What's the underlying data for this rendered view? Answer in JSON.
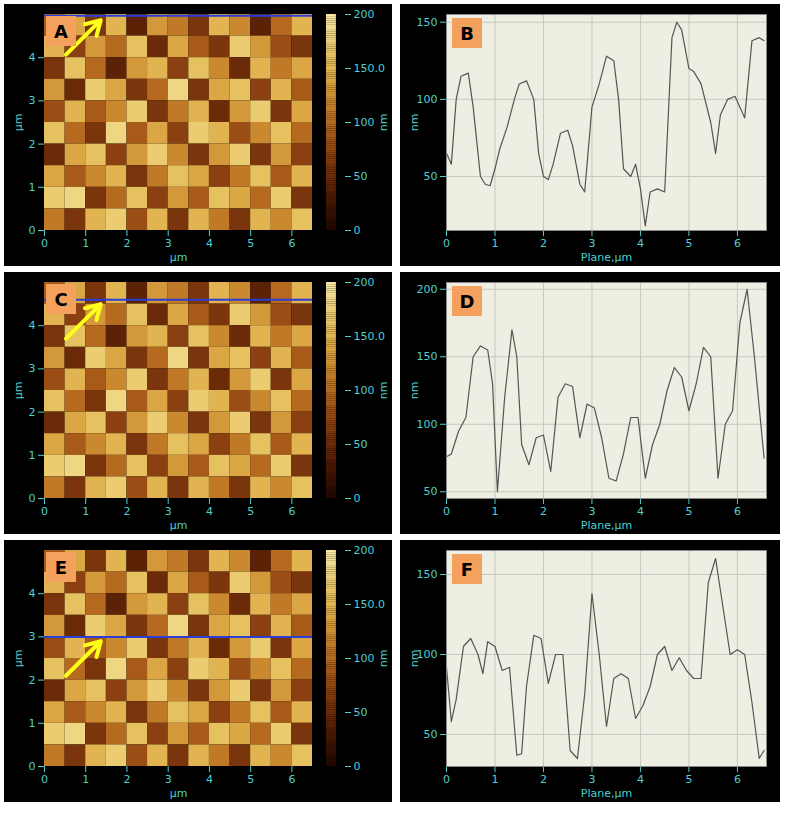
{
  "chart_data": [
    {
      "panel_label": "A",
      "type": "heatmap",
      "x_label": "µm",
      "y_label": "µm",
      "xlim": [
        0,
        6.5
      ],
      "ylim": [
        0,
        5
      ],
      "xticks": [
        0,
        1,
        2,
        3,
        4,
        5,
        6
      ],
      "yticks": [
        0,
        1,
        2,
        3,
        4
      ],
      "cells": [
        [
          90,
          140,
          60,
          150,
          40,
          130,
          110,
          60,
          150,
          120,
          40,
          100,
          150
        ],
        [
          150,
          70,
          130,
          100,
          160,
          50,
          140,
          90,
          60,
          170,
          130,
          80,
          60
        ],
        [
          60,
          160,
          100,
          40,
          130,
          150,
          70,
          160,
          120,
          50,
          150,
          110,
          140
        ],
        [
          130,
          50,
          170,
          140,
          60,
          100,
          180,
          60,
          140,
          160,
          70,
          150,
          90
        ],
        [
          80,
          150,
          90,
          120,
          170,
          60,
          110,
          150,
          50,
          130,
          170,
          60,
          140
        ],
        [
          160,
          100,
          60,
          180,
          90,
          140,
          70,
          170,
          150,
          80,
          120,
          160,
          100
        ],
        [
          50,
          140,
          160,
          70,
          130,
          170,
          120,
          60,
          130,
          170,
          60,
          130,
          70
        ],
        [
          140,
          90,
          120,
          150,
          60,
          110,
          160,
          140,
          70,
          110,
          160,
          90,
          150
        ],
        [
          170,
          180,
          60,
          100,
          160,
          70,
          130,
          90,
          160,
          140,
          100,
          170,
          60
        ],
        [
          110,
          60,
          150,
          170,
          80,
          150,
          60,
          150,
          110,
          60,
          150,
          120,
          160
        ]
      ],
      "colorbar": {
        "label": "nm",
        "range": [
          0,
          200
        ],
        "ticks": [
          0,
          50,
          100,
          {
            "value": 150,
            "label": "150.0"
          },
          200
        ]
      },
      "line_y": 4.97,
      "color": "#2a3fd6"
    },
    {
      "panel_label": "B",
      "type": "line",
      "x_label": "Plane,µm",
      "y_label": "nm",
      "xlim": [
        0,
        6.6
      ],
      "ylim": [
        15,
        155
      ],
      "xticks": [
        0,
        1,
        2,
        3,
        4,
        5,
        6
      ],
      "yticks": [
        50,
        100,
        150
      ],
      "grid": true,
      "color": "#555555",
      "x": [
        0,
        0.1,
        0.2,
        0.3,
        0.45,
        0.55,
        0.7,
        0.8,
        0.9,
        1.0,
        1.1,
        1.25,
        1.4,
        1.5,
        1.65,
        1.8,
        1.9,
        2.0,
        2.1,
        2.2,
        2.35,
        2.5,
        2.6,
        2.75,
        2.85,
        3.0,
        3.15,
        3.3,
        3.45,
        3.55,
        3.65,
        3.8,
        3.9,
        4.0,
        4.1,
        4.2,
        4.35,
        4.5,
        4.65,
        4.75,
        4.85,
        5.0,
        5.1,
        5.25,
        5.45,
        5.55,
        5.65,
        5.8,
        5.95,
        6.05,
        6.15,
        6.3,
        6.45,
        6.55
      ],
      "values": [
        65,
        58,
        100,
        115,
        117,
        95,
        50,
        45,
        44,
        55,
        68,
        82,
        100,
        110,
        112,
        100,
        65,
        50,
        48,
        58,
        78,
        80,
        70,
        45,
        40,
        95,
        110,
        128,
        125,
        100,
        55,
        50,
        58,
        42,
        18,
        40,
        42,
        40,
        140,
        150,
        145,
        120,
        118,
        110,
        85,
        65,
        90,
        100,
        102,
        95,
        88,
        138,
        140,
        138
      ]
    },
    {
      "panel_label": "C",
      "type": "heatmap",
      "x_label": "µm",
      "y_label": "µm",
      "xlim": [
        0,
        6.5
      ],
      "ylim": [
        0,
        5
      ],
      "xticks": [
        0,
        1,
        2,
        3,
        4,
        5,
        6
      ],
      "yticks": [
        0,
        1,
        2,
        3,
        4
      ],
      "cells": [
        [
          90,
          140,
          60,
          150,
          40,
          130,
          110,
          60,
          150,
          120,
          40,
          100,
          150
        ],
        [
          150,
          70,
          130,
          100,
          160,
          50,
          140,
          90,
          60,
          170,
          130,
          80,
          60
        ],
        [
          60,
          160,
          100,
          40,
          130,
          150,
          70,
          160,
          120,
          50,
          150,
          110,
          140
        ],
        [
          130,
          50,
          170,
          140,
          60,
          100,
          180,
          60,
          140,
          160,
          70,
          150,
          90
        ],
        [
          80,
          150,
          90,
          120,
          170,
          60,
          110,
          150,
          50,
          130,
          170,
          60,
          140
        ],
        [
          160,
          100,
          60,
          180,
          90,
          140,
          70,
          170,
          150,
          80,
          120,
          160,
          100
        ],
        [
          50,
          140,
          160,
          70,
          130,
          170,
          120,
          60,
          130,
          170,
          60,
          130,
          70
        ],
        [
          140,
          90,
          120,
          150,
          60,
          110,
          160,
          140,
          70,
          110,
          160,
          90,
          150
        ],
        [
          170,
          180,
          60,
          100,
          160,
          70,
          130,
          90,
          160,
          140,
          100,
          170,
          60
        ],
        [
          110,
          60,
          150,
          170,
          80,
          150,
          60,
          150,
          110,
          60,
          150,
          120,
          160
        ]
      ],
      "colorbar": {
        "label": "nm",
        "range": [
          0,
          200
        ],
        "ticks": [
          0,
          50,
          100,
          {
            "value": 150,
            "label": "150.0"
          },
          200
        ]
      },
      "line_y": 4.6,
      "color": "#2a3fd6"
    },
    {
      "panel_label": "D",
      "type": "line",
      "x_label": "Plane,µm",
      "y_label": "nm",
      "xlim": [
        0,
        6.6
      ],
      "ylim": [
        45,
        205
      ],
      "xticks": [
        0,
        1,
        2,
        3,
        4,
        5,
        6
      ],
      "yticks": [
        50,
        100,
        150,
        200
      ],
      "grid": true,
      "color": "#555555",
      "x": [
        0,
        0.1,
        0.25,
        0.4,
        0.55,
        0.7,
        0.85,
        0.95,
        1.05,
        1.2,
        1.35,
        1.45,
        1.55,
        1.7,
        1.85,
        2.0,
        2.15,
        2.3,
        2.45,
        2.6,
        2.75,
        2.9,
        3.05,
        3.2,
        3.35,
        3.5,
        3.65,
        3.8,
        3.95,
        4.1,
        4.25,
        4.4,
        4.55,
        4.7,
        4.85,
        5.0,
        5.15,
        5.3,
        5.45,
        5.6,
        5.75,
        5.9,
        6.05,
        6.2,
        6.35,
        6.55
      ],
      "values": [
        76,
        78,
        95,
        105,
        150,
        158,
        155,
        130,
        50,
        120,
        170,
        150,
        85,
        70,
        90,
        92,
        65,
        120,
        130,
        128,
        90,
        115,
        112,
        90,
        60,
        58,
        78,
        105,
        105,
        60,
        85,
        100,
        125,
        142,
        135,
        110,
        130,
        157,
        150,
        60,
        100,
        110,
        175,
        200,
        150,
        75
      ]
    },
    {
      "panel_label": "E",
      "type": "heatmap",
      "x_label": "µm",
      "y_label": "µm",
      "xlim": [
        0,
        6.5
      ],
      "ylim": [
        0,
        5
      ],
      "xticks": [
        0,
        1,
        2,
        3,
        4,
        5,
        6
      ],
      "yticks": [
        0,
        1,
        2,
        3,
        4
      ],
      "cells": [
        [
          90,
          140,
          60,
          150,
          40,
          130,
          110,
          60,
          150,
          120,
          40,
          100,
          150
        ],
        [
          150,
          70,
          130,
          100,
          160,
          50,
          140,
          90,
          60,
          170,
          130,
          80,
          60
        ],
        [
          60,
          160,
          100,
          40,
          130,
          150,
          70,
          160,
          120,
          50,
          150,
          110,
          140
        ],
        [
          130,
          50,
          170,
          140,
          60,
          100,
          180,
          60,
          140,
          160,
          70,
          150,
          90
        ],
        [
          80,
          150,
          90,
          120,
          170,
          60,
          110,
          150,
          50,
          130,
          170,
          60,
          140
        ],
        [
          160,
          100,
          60,
          180,
          90,
          140,
          70,
          170,
          150,
          80,
          120,
          160,
          100
        ],
        [
          50,
          140,
          160,
          70,
          130,
          170,
          120,
          60,
          130,
          170,
          60,
          130,
          70
        ],
        [
          140,
          90,
          120,
          150,
          60,
          110,
          160,
          140,
          70,
          110,
          160,
          90,
          150
        ],
        [
          170,
          180,
          60,
          100,
          160,
          70,
          130,
          90,
          160,
          140,
          100,
          170,
          60
        ],
        [
          110,
          60,
          150,
          170,
          80,
          150,
          60,
          150,
          110,
          60,
          150,
          120,
          160
        ]
      ],
      "colorbar": {
        "label": "nm",
        "range": [
          0,
          200
        ],
        "ticks": [
          0,
          50,
          100,
          {
            "value": 150,
            "label": "150.0"
          },
          200
        ]
      },
      "line_y": 3.0,
      "color": "#2a3fd6"
    },
    {
      "panel_label": "F",
      "type": "line",
      "x_label": "Plane,µm",
      "y_label": "nm",
      "xlim": [
        0,
        6.6
      ],
      "ylim": [
        30,
        165
      ],
      "xticks": [
        0,
        1,
        2,
        3,
        4,
        5,
        6
      ],
      "yticks": [
        50,
        100,
        150
      ],
      "grid": true,
      "color": "#555555",
      "x": [
        0,
        0.1,
        0.2,
        0.35,
        0.5,
        0.65,
        0.75,
        0.85,
        1.0,
        1.15,
        1.3,
        1.45,
        1.55,
        1.65,
        1.8,
        1.95,
        2.1,
        2.25,
        2.4,
        2.55,
        2.7,
        2.85,
        3.0,
        3.15,
        3.3,
        3.45,
        3.6,
        3.75,
        3.9,
        4.05,
        4.2,
        4.35,
        4.5,
        4.65,
        4.8,
        4.95,
        5.1,
        5.25,
        5.4,
        5.55,
        5.7,
        5.85,
        6.0,
        6.15,
        6.3,
        6.45,
        6.55
      ],
      "values": [
        92,
        58,
        72,
        105,
        110,
        100,
        88,
        108,
        105,
        90,
        92,
        37,
        38,
        80,
        112,
        110,
        82,
        100,
        100,
        40,
        35,
        75,
        138,
        100,
        55,
        85,
        88,
        85,
        60,
        68,
        80,
        100,
        105,
        90,
        98,
        90,
        85,
        85,
        145,
        160,
        130,
        100,
        103,
        100,
        70,
        35,
        40
      ]
    }
  ]
}
